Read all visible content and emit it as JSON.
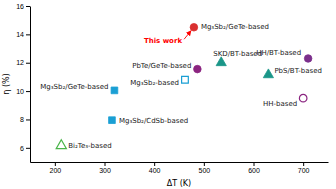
{
  "chart_data": {
    "type": "scatter",
    "xlabel": "ΔT (K)",
    "ylabel": "η (%)",
    "xlim": [
      150,
      750
    ],
    "ylim": [
      5,
      16
    ],
    "xticks": [
      200,
      300,
      400,
      500,
      600,
      700
    ],
    "yticks": [
      6,
      8,
      10,
      12,
      14,
      16
    ],
    "series": [
      {
        "name": "Mg₃Sb₂/GeTe-based",
        "color": "#d93030",
        "marker": "circle",
        "x": [
          480
        ],
        "values": [
          14.5
        ]
      },
      {
        "name": "Mg₃Sb₂/GeTe-based",
        "color": "#1a9fd4",
        "marker": "square",
        "x": [
          320
        ],
        "values": [
          10.05
        ]
      },
      {
        "name": "Mg₃Sb₂/CdSb-based",
        "color": "#1a9fd4",
        "marker": "square",
        "x": [
          315
        ],
        "values": [
          7.95
        ]
      },
      {
        "name": "Bi₂Te₃-based",
        "color": "#4ab54a",
        "marker": "triangle-open",
        "x": [
          213
        ],
        "values": [
          6.15
        ]
      },
      {
        "name": "PbTe/GeTe-based",
        "color": "#8b2580",
        "marker": "circle",
        "x": [
          487
        ],
        "values": [
          11.55
        ]
      },
      {
        "name": "Mg₃Sb₂-based",
        "color": "#1a9fd4",
        "marker": "square-open",
        "x": [
          462
        ],
        "values": [
          10.8
        ]
      },
      {
        "name": "SKD/BT-based",
        "color": "#1a9688",
        "marker": "triangle",
        "x": [
          535
        ],
        "values": [
          12.0
        ]
      },
      {
        "name": "HH/BT-based",
        "color": "#7b2f8c",
        "marker": "circle",
        "x": [
          710
        ],
        "values": [
          12.3
        ]
      },
      {
        "name": "PbS/BT-based",
        "color": "#1a9688",
        "marker": "triangle",
        "x": [
          630
        ],
        "values": [
          11.15
        ]
      },
      {
        "name": "HH-based",
        "color": "#8b2580",
        "marker": "circle-open",
        "x": [
          700
        ],
        "values": [
          9.5
        ]
      }
    ],
    "annotations": [
      {
        "text": "This work",
        "x": 480,
        "y": 14.5,
        "color": "red"
      }
    ]
  }
}
